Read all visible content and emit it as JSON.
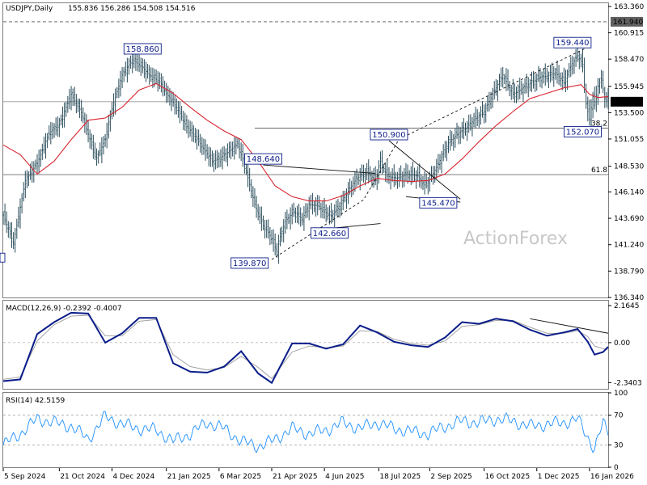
{
  "chart_data": [
    {
      "type": "candlestick",
      "title": "USDJPY,Daily",
      "ohlc_text": "155.836 156.286 154.508 154.516",
      "ylim": [
        136.34,
        163.36
      ],
      "y_ticks": [
        163.36,
        160.915,
        158.47,
        155.945,
        153.5,
        151.055,
        148.53,
        146.14,
        143.69,
        141.24,
        138.79,
        136.34
      ],
      "y_tick_labels": [
        "163.360",
        "160.915",
        "158.470",
        "155.945",
        "153.500",
        "151.055",
        "148.530",
        "146.140",
        "143.690",
        "141.240",
        "138.790",
        "136.340"
      ],
      "x_tick_labels": [
        "5 Sep 2024",
        "21 Oct 2024",
        "4 Dec 2024",
        "21 Jan 2025",
        "6 Mar 2025",
        "21 Apr 2025",
        "4 Jun 2025",
        "18 Jul 2025",
        "2 Sep 2025",
        "16 Oct 2025",
        "1 Dec 2025",
        "16 Jan 2026"
      ],
      "x_tick_positions": [
        0,
        33,
        64,
        96,
        127,
        158,
        189,
        221,
        251,
        283,
        314,
        345
      ],
      "price_path": [
        [
          0,
          144.0
        ],
        [
          6,
          141.4
        ],
        [
          13,
          147.2
        ],
        [
          20,
          148.8
        ],
        [
          27,
          151.6
        ],
        [
          33,
          152.4
        ],
        [
          40,
          155.2
        ],
        [
          46,
          153.5
        ],
        [
          52,
          150.5
        ],
        [
          55,
          149.3
        ],
        [
          60,
          151.0
        ],
        [
          64,
          153.9
        ],
        [
          70,
          157.0
        ],
        [
          76,
          158.4
        ],
        [
          80,
          158.0
        ],
        [
          86,
          157.0
        ],
        [
          92,
          156.4
        ],
        [
          96,
          155.3
        ],
        [
          102,
          154.0
        ],
        [
          108,
          152.2
        ],
        [
          112,
          151.5
        ],
        [
          117,
          150.4
        ],
        [
          123,
          149.0
        ],
        [
          127,
          149.2
        ],
        [
          132,
          149.8
        ],
        [
          138,
          150.6
        ],
        [
          142,
          148.7
        ],
        [
          148,
          145.0
        ],
        [
          153,
          143.0
        ],
        [
          156,
          142.4
        ],
        [
          158,
          141.8
        ],
        [
          161,
          140.6
        ],
        [
          163,
          142.0
        ],
        [
          166,
          143.4
        ],
        [
          171,
          144.3
        ],
        [
          176,
          143.6
        ],
        [
          180,
          145.0
        ],
        [
          186,
          144.8
        ],
        [
          189,
          144.3
        ],
        [
          193,
          143.9
        ],
        [
          198,
          144.8
        ],
        [
          203,
          146.2
        ],
        [
          208,
          147.4
        ],
        [
          214,
          148.0
        ],
        [
          219,
          147.2
        ],
        [
          222,
          149.0
        ],
        [
          226,
          147.6
        ],
        [
          232,
          147.4
        ],
        [
          238,
          147.8
        ],
        [
          244,
          147.6
        ],
        [
          248,
          146.8
        ],
        [
          251,
          147.3
        ],
        [
          255,
          148.4
        ],
        [
          262,
          150.7
        ],
        [
          268,
          151.6
        ],
        [
          272,
          152.0
        ],
        [
          277,
          152.8
        ],
        [
          283,
          153.6
        ],
        [
          288,
          155.2
        ],
        [
          294,
          157.0
        ],
        [
          300,
          155.2
        ],
        [
          306,
          155.8
        ],
        [
          311,
          156.3
        ],
        [
          316,
          156.8
        ],
        [
          320,
          156.9
        ],
        [
          325,
          157.2
        ],
        [
          330,
          156.3
        ],
        [
          334,
          157.8
        ],
        [
          338,
          158.8
        ],
        [
          341,
          158.0
        ],
        [
          343,
          154.3
        ],
        [
          345,
          152.9
        ],
        [
          347,
          155.0
        ],
        [
          348,
          154.2
        ],
        [
          350,
          156.0
        ],
        [
          352,
          156.6
        ],
        [
          354,
          154.8
        ],
        [
          356,
          154.5
        ]
      ],
      "ma_path": [
        [
          0,
          150.5
        ],
        [
          10,
          149.6
        ],
        [
          20,
          147.8
        ],
        [
          30,
          149.0
        ],
        [
          40,
          151.0
        ],
        [
          50,
          152.8
        ],
        [
          60,
          153.0
        ],
        [
          70,
          154.0
        ],
        [
          80,
          155.6
        ],
        [
          90,
          156.2
        ],
        [
          100,
          155.3
        ],
        [
          110,
          154.0
        ],
        [
          120,
          152.8
        ],
        [
          130,
          151.8
        ],
        [
          140,
          151.0
        ],
        [
          150,
          149.0
        ],
        [
          160,
          146.7
        ],
        [
          170,
          145.7
        ],
        [
          180,
          145.3
        ],
        [
          190,
          145.3
        ],
        [
          200,
          145.8
        ],
        [
          210,
          146.7
        ],
        [
          220,
          147.4
        ],
        [
          230,
          147.2
        ],
        [
          240,
          147.1
        ],
        [
          250,
          147.2
        ],
        [
          260,
          147.8
        ],
        [
          270,
          149.2
        ],
        [
          280,
          150.8
        ],
        [
          290,
          152.3
        ],
        [
          300,
          153.6
        ],
        [
          310,
          154.8
        ],
        [
          320,
          155.3
        ],
        [
          330,
          155.8
        ],
        [
          340,
          156.1
        ],
        [
          345,
          155.2
        ],
        [
          350,
          154.9
        ],
        [
          356,
          155.0
        ]
      ],
      "horizontal_levels": [
        {
          "name": "161.940",
          "value": 161.94,
          "style": "dashed"
        },
        {
          "name": "38.2",
          "value": 152.07,
          "style": "solid"
        },
        {
          "name": "61.8",
          "value": 147.75,
          "style": "solid"
        },
        {
          "name": "154.516",
          "value": 154.516,
          "style": "solid"
        }
      ],
      "callouts": [
        {
          "label": "158.860",
          "x": 82,
          "value": 158.86
        },
        {
          "label": "159.440",
          "x": 335,
          "value": 159.44
        },
        {
          "label": "150.900",
          "x": 227,
          "value": 150.9
        },
        {
          "label": "148.640",
          "x": 153,
          "value": 148.64
        },
        {
          "label": "145.470",
          "x": 256,
          "value": 145.47
        },
        {
          "label": "152.070",
          "x": 341,
          "value": 152.07
        },
        {
          "label": "142.660",
          "x": 192,
          "value": 142.66
        },
        {
          "label": "139.870",
          "x": 145,
          "value": 139.87
        }
      ],
      "trendlines": [
        {
          "points": [
            [
              158,
              139.87
            ],
            [
              212,
              145.4
            ],
            [
              233,
              151.05
            ],
            [
              343,
              159.5
            ]
          ],
          "style": "dashed"
        },
        {
          "points": [
            [
              227,
              150.9
            ],
            [
              269,
              145.47
            ]
          ],
          "style": "solid"
        },
        {
          "points": [
            [
              153,
              148.64
            ],
            [
              219,
              147.85
            ]
          ],
          "style": "solid"
        },
        {
          "points": [
            [
              186,
              142.66
            ],
            [
              222,
              143.2
            ]
          ],
          "style": "solid"
        },
        {
          "points": [
            [
              237,
              145.7
            ],
            [
              269,
              145.2
            ]
          ],
          "style": "solid"
        }
      ],
      "watermark": "ActionForex",
      "last_price_label": "154.516"
    },
    {
      "type": "line",
      "title": "MACD(12,26,9) -0.2392 -0.4007",
      "ylim": [
        -2.7,
        2.5
      ],
      "y_tick_labels": [
        "2.1645",
        "0.00",
        "-2.3403"
      ],
      "y_ticks": [
        2.1645,
        0,
        -2.3403
      ],
      "series": [
        {
          "values": [
            [
              0,
              -2.25
            ],
            [
              10,
              -2.15
            ],
            [
              20,
              0.5
            ],
            [
              30,
              1.2
            ],
            [
              40,
              1.75
            ],
            [
              50,
              1.7
            ],
            [
              60,
              0.0
            ],
            [
              70,
              0.55
            ],
            [
              80,
              1.45
            ],
            [
              90,
              1.45
            ],
            [
              100,
              -1.2
            ],
            [
              110,
              -1.7
            ],
            [
              120,
              -1.75
            ],
            [
              130,
              -1.4
            ],
            [
              140,
              -0.5
            ],
            [
              150,
              -1.8
            ],
            [
              158,
              -2.35
            ],
            [
              170,
              -0.05
            ],
            [
              180,
              -0.05
            ],
            [
              190,
              -0.35
            ],
            [
              200,
              -0.1
            ],
            [
              210,
              1.0
            ],
            [
              220,
              0.6
            ],
            [
              230,
              0.05
            ],
            [
              240,
              -0.15
            ],
            [
              250,
              -0.25
            ],
            [
              260,
              0.3
            ],
            [
              270,
              1.2
            ],
            [
              280,
              1.1
            ],
            [
              290,
              1.4
            ],
            [
              300,
              1.25
            ],
            [
              310,
              0.75
            ],
            [
              320,
              0.4
            ],
            [
              330,
              0.6
            ],
            [
              338,
              0.8
            ],
            [
              344,
              0.05
            ],
            [
              348,
              -0.7
            ],
            [
              353,
              -0.55
            ],
            [
              356,
              -0.24
            ]
          ]
        },
        {
          "values": [
            [
              0,
              -2.15
            ],
            [
              10,
              -2.0
            ],
            [
              20,
              0.1
            ],
            [
              30,
              1.05
            ],
            [
              40,
              1.55
            ],
            [
              50,
              1.6
            ],
            [
              60,
              0.4
            ],
            [
              70,
              0.4
            ],
            [
              80,
              1.25
            ],
            [
              90,
              1.35
            ],
            [
              100,
              -0.7
            ],
            [
              110,
              -1.4
            ],
            [
              120,
              -1.6
            ],
            [
              130,
              -1.45
            ],
            [
              140,
              -0.8
            ],
            [
              150,
              -1.45
            ],
            [
              158,
              -2.1
            ],
            [
              170,
              -0.55
            ],
            [
              180,
              -0.2
            ],
            [
              190,
              -0.3
            ],
            [
              200,
              -0.2
            ],
            [
              210,
              0.7
            ],
            [
              220,
              0.65
            ],
            [
              230,
              0.2
            ],
            [
              240,
              -0.05
            ],
            [
              250,
              -0.15
            ],
            [
              260,
              0.1
            ],
            [
              270,
              0.95
            ],
            [
              280,
              1.05
            ],
            [
              290,
              1.3
            ],
            [
              300,
              1.3
            ],
            [
              310,
              0.9
            ],
            [
              320,
              0.55
            ],
            [
              330,
              0.55
            ],
            [
              338,
              0.7
            ],
            [
              344,
              0.35
            ],
            [
              348,
              -0.2
            ],
            [
              353,
              -0.35
            ],
            [
              356,
              -0.4
            ]
          ]
        }
      ],
      "trendline": [
        [
          310,
          1.4
        ],
        [
          375,
          0.55
        ]
      ]
    },
    {
      "type": "line",
      "title": "RSI(14) 42.5159",
      "ylim": [
        0,
        100
      ],
      "y_ticks": [
        100,
        70,
        30,
        0
      ],
      "y_tick_labels": [
        "100",
        "70",
        "30",
        "0"
      ],
      "series": [
        {
          "values": [
            [
              0,
              30
            ],
            [
              10,
              45
            ],
            [
              20,
              65
            ],
            [
              30,
              60
            ],
            [
              40,
              55
            ],
            [
              50,
              38
            ],
            [
              60,
              68
            ],
            [
              70,
              58
            ],
            [
              80,
              52
            ],
            [
              90,
              50
            ],
            [
              100,
              35
            ],
            [
              110,
              45
            ],
            [
              120,
              60
            ],
            [
              130,
              52
            ],
            [
              140,
              35
            ],
            [
              150,
              28
            ],
            [
              158,
              35
            ],
            [
              170,
              52
            ],
            [
              180,
              45
            ],
            [
              190,
              50
            ],
            [
              200,
              60
            ],
            [
              210,
              52
            ],
            [
              220,
              60
            ],
            [
              230,
              52
            ],
            [
              240,
              48
            ],
            [
              250,
              45
            ],
            [
              260,
              55
            ],
            [
              270,
              62
            ],
            [
              280,
              60
            ],
            [
              290,
              65
            ],
            [
              300,
              62
            ],
            [
              310,
              55
            ],
            [
              320,
              58
            ],
            [
              330,
              60
            ],
            [
              338,
              65
            ],
            [
              344,
              40
            ],
            [
              348,
              25
            ],
            [
              353,
              60
            ],
            [
              356,
              42.5
            ]
          ]
        }
      ]
    }
  ]
}
